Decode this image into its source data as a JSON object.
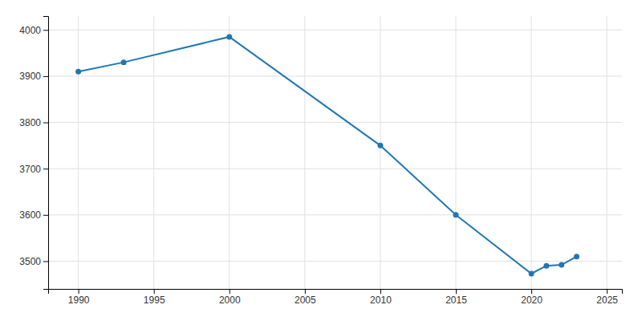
{
  "chart_data": {
    "type": "line",
    "x": [
      1990,
      1993,
      2000,
      2010,
      2015,
      2020,
      2021,
      2022,
      2023
    ],
    "values": [
      3910,
      3930,
      3985,
      3750,
      3600,
      3473,
      3490,
      3492,
      3510
    ],
    "marker": "circle",
    "xlim": [
      1988,
      2026
    ],
    "ylim": [
      3440,
      4030
    ],
    "xticks": [
      1990,
      1995,
      2000,
      2005,
      2010,
      2015,
      2020,
      2025
    ],
    "yticks": [
      3500,
      3600,
      3700,
      3800,
      3900,
      4000
    ],
    "grid": true
  }
}
